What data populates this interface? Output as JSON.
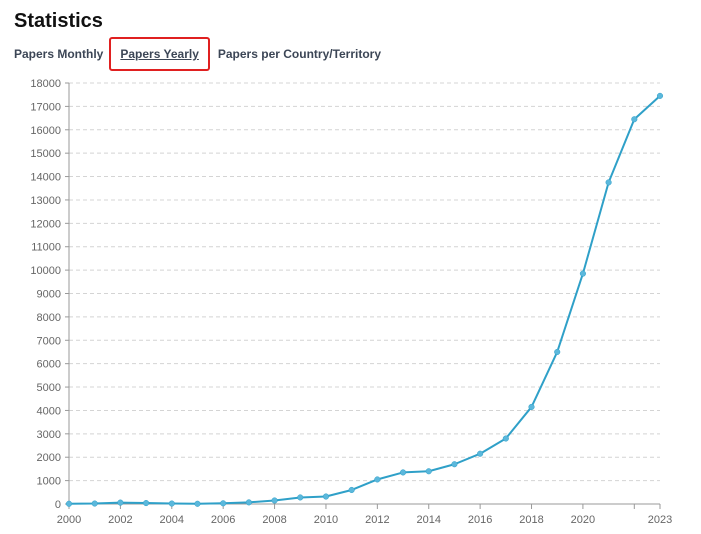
{
  "page": {
    "title": "Statistics"
  },
  "tabs": [
    {
      "label": "Papers Monthly",
      "active": false
    },
    {
      "label": "Papers Yearly",
      "active": true
    },
    {
      "label": "Papers per Country/Territory",
      "active": false
    }
  ],
  "colors": {
    "line": "#2fa0c8",
    "point": "#5bb8dc",
    "grid": "#d4d4d4",
    "axis": "#999999",
    "highlight": "#e02020"
  },
  "chart_data": {
    "type": "line",
    "title": "",
    "xlabel": "",
    "ylabel": "",
    "x": [
      2000,
      2001,
      2002,
      2003,
      2004,
      2005,
      2006,
      2007,
      2008,
      2009,
      2010,
      2011,
      2012,
      2013,
      2014,
      2015,
      2016,
      2017,
      2018,
      2019,
      2020,
      2021,
      2022,
      2023
    ],
    "series": [
      {
        "name": "",
        "values": [
          10,
          20,
          60,
          40,
          20,
          10,
          30,
          70,
          150,
          280,
          320,
          600,
          1050,
          1350,
          1400,
          1700,
          2150,
          2800,
          4150,
          6500,
          9850,
          13750,
          16450,
          17450
        ]
      }
    ],
    "xlim": [
      2000,
      2023
    ],
    "ylim": [
      0,
      18000
    ],
    "x_tick_labels": [
      "2000",
      "2002",
      "2004",
      "2006",
      "2008",
      "2010",
      "2012",
      "2014",
      "2016",
      "2018",
      "2020",
      "2023"
    ],
    "x_tick_values": [
      2000,
      2002,
      2004,
      2006,
      2008,
      2010,
      2012,
      2014,
      2016,
      2018,
      2020,
      2023
    ],
    "x_minor_ticks": [
      2022
    ],
    "y_ticks": [
      0,
      1000,
      2000,
      3000,
      4000,
      5000,
      6000,
      7000,
      8000,
      9000,
      10000,
      11000,
      12000,
      13000,
      14000,
      15000,
      16000,
      17000,
      18000
    ],
    "grid": true,
    "legend": "none"
  }
}
